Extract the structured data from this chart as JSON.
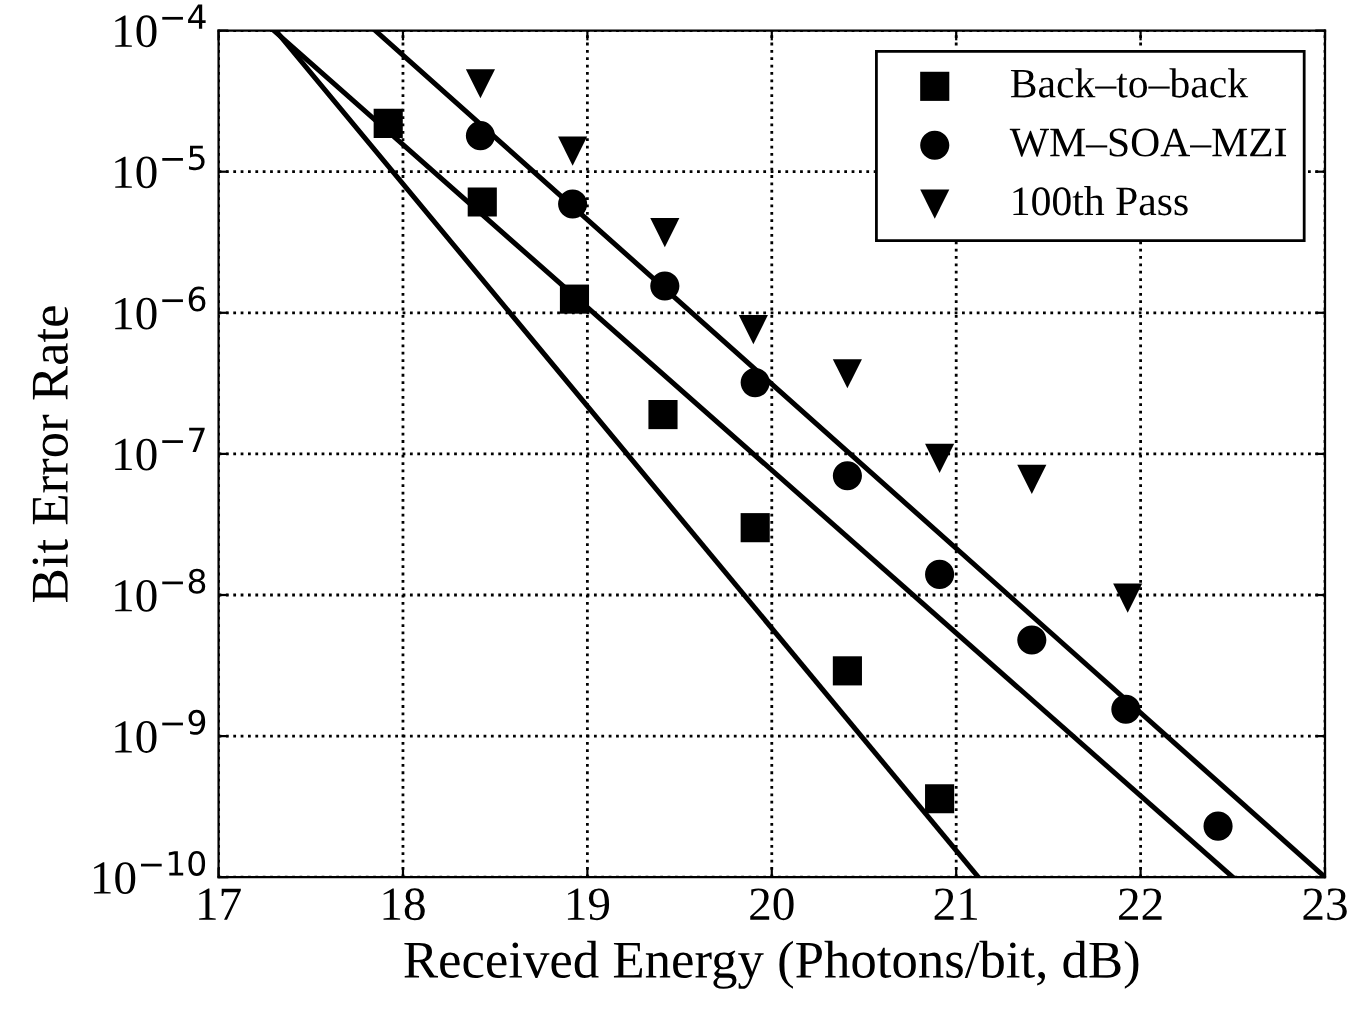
{
  "chart_data": {
    "type": "scatter",
    "xlabel": "Received Energy (Photons/bit, dB)",
    "ylabel": "Bit Error Rate",
    "xlim": [
      17,
      23
    ],
    "xticks": [
      17,
      18,
      19,
      20,
      21,
      22,
      23
    ],
    "ylim": [
      1e-10,
      0.0001
    ],
    "yticks": [
      {
        "value": 1e-10,
        "label": "10$^{−10}$"
      },
      {
        "value": 1e-09,
        "label": "10$^{−9}$"
      },
      {
        "value": 1e-08,
        "label": "10$^{−8}$"
      },
      {
        "value": 1e-07,
        "label": "10$^{−7}$"
      },
      {
        "value": 1e-06,
        "label": "10$^{−6}$"
      },
      {
        "value": 1e-05,
        "label": "10$^{−5}$"
      },
      {
        "value": 0.0001,
        "label": "10$^{−4}$"
      }
    ],
    "log": "y",
    "grid": true,
    "legend": "top right",
    "series": [
      {
        "name": "Back–to–back",
        "color": "#000000",
        "marker": "square",
        "x": [
          17.92,
          18.43,
          18.93,
          19.41,
          19.91,
          20.41,
          20.91
        ],
        "values": [
          2.2e-05,
          6.1e-06,
          1.25e-06,
          1.9e-07,
          3e-08,
          2.9e-09,
          3.6e-10
        ]
      },
      {
        "name": "WM–SOA–MZI",
        "color": "#000000",
        "marker": "circle",
        "x": [
          18.42,
          18.92,
          19.42,
          19.91,
          20.41,
          20.91,
          21.41,
          21.92,
          22.42
        ],
        "values": [
          1.8e-05,
          5.9e-06,
          1.55e-06,
          3.2e-07,
          7e-08,
          1.4e-08,
          4.8e-09,
          1.55e-09,
          2.3e-10
        ]
      },
      {
        "name": "100th Pass",
        "color": "#000000",
        "marker": "triangle",
        "x": [
          18.42,
          18.92,
          19.42,
          19.9,
          20.41,
          20.91,
          21.41,
          21.93
        ],
        "values": [
          4.2e-05,
          1.4e-05,
          3.7e-06,
          7.6e-07,
          3.7e-07,
          9.3e-08,
          6.6e-08,
          9.5e-09
        ]
      },
      {
        "type": "line",
        "color": "#000000",
        "x": [
          17.31,
          21.12
        ],
        "values": [
          0.0001,
          1e-10
        ]
      },
      {
        "type": "line",
        "color": "#000000",
        "x": [
          17.3,
          22.5
        ],
        "values": [
          0.0001,
          1e-10
        ]
      },
      {
        "type": "line",
        "color": "#000000",
        "x": [
          17.85,
          23
        ],
        "values": [
          0.0001,
          1e-10
        ]
      }
    ]
  }
}
